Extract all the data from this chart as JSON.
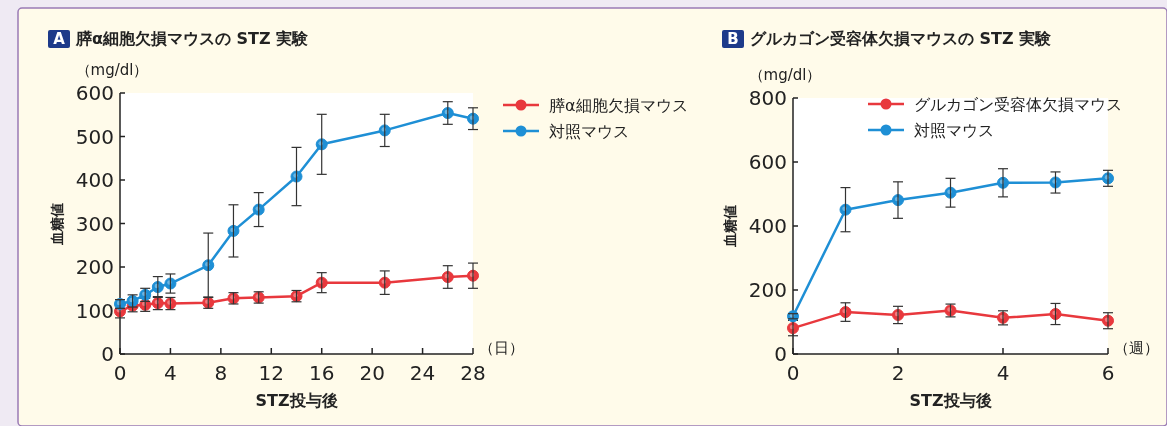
{
  "chart_data": [
    {
      "type": "line",
      "title": "膵α細胞欠損マウスの STZ 実験",
      "xlabel": "STZ投与後",
      "ylabel": "血糖値",
      "annotations": [
        "A",
        "（mg/dl）",
        "（日）"
      ],
      "x": [
        0,
        1,
        2,
        3,
        4,
        7,
        9,
        11,
        14,
        16,
        21,
        26,
        28
      ],
      "series": [
        {
          "name": "膵α細胞欠損マウス",
          "color": "#e8383d",
          "values": [
            98,
            111,
            113,
            117,
            116,
            118,
            128,
            130,
            133,
            164,
            164,
            177,
            180
          ],
          "errors": [
            15,
            14,
            15,
            15,
            14,
            13,
            13,
            13,
            13,
            23,
            27,
            26,
            29
          ]
        },
        {
          "name": "対照マウス",
          "color": "#1e8fd5",
          "values": [
            115,
            122,
            136,
            154,
            162,
            204,
            283,
            332,
            408,
            482,
            514,
            554,
            541
          ],
          "errors": [
            10,
            14,
            15,
            24,
            22,
            74,
            60,
            39,
            67,
            69,
            37,
            26,
            25
          ]
        }
      ],
      "xlim": [
        0,
        28
      ],
      "xticks": [
        0,
        4,
        8,
        12,
        16,
        20,
        24,
        28
      ],
      "ylim": [
        0,
        600
      ],
      "yticks": [
        0,
        100,
        200,
        300,
        400,
        500,
        600
      ],
      "grid": false,
      "legend": "right",
      "marker": "circle",
      "line_style": "solid"
    },
    {
      "type": "line",
      "title": "グルカゴン受容体欠損マウスの STZ 実験",
      "xlabel": "STZ投与後",
      "ylabel": "血糖値",
      "annotations": [
        "B",
        "（mg/dl）",
        "（週）"
      ],
      "x": [
        0,
        1,
        2,
        3,
        4,
        5,
        6
      ],
      "series": [
        {
          "name": "グルカゴン受容体欠損マウス",
          "color": "#e8383d",
          "values": [
            81,
            131,
            122,
            136,
            113,
            125,
            104
          ],
          "errors": [
            24,
            29,
            27,
            20,
            22,
            33,
            25
          ]
        },
        {
          "name": "対照マウス",
          "color": "#1e8fd5",
          "values": [
            118,
            451,
            481,
            504,
            535,
            536,
            549
          ],
          "errors": [
            8,
            69,
            57,
            45,
            44,
            33,
            25
          ]
        }
      ],
      "xlim": [
        0,
        6
      ],
      "xticks": [
        0,
        2,
        4,
        6
      ],
      "ylim": [
        0,
        800
      ],
      "yticks": [
        0,
        200,
        400,
        600,
        800
      ],
      "grid": false,
      "legend": "top right",
      "marker": "circle",
      "line_style": "solid"
    }
  ]
}
